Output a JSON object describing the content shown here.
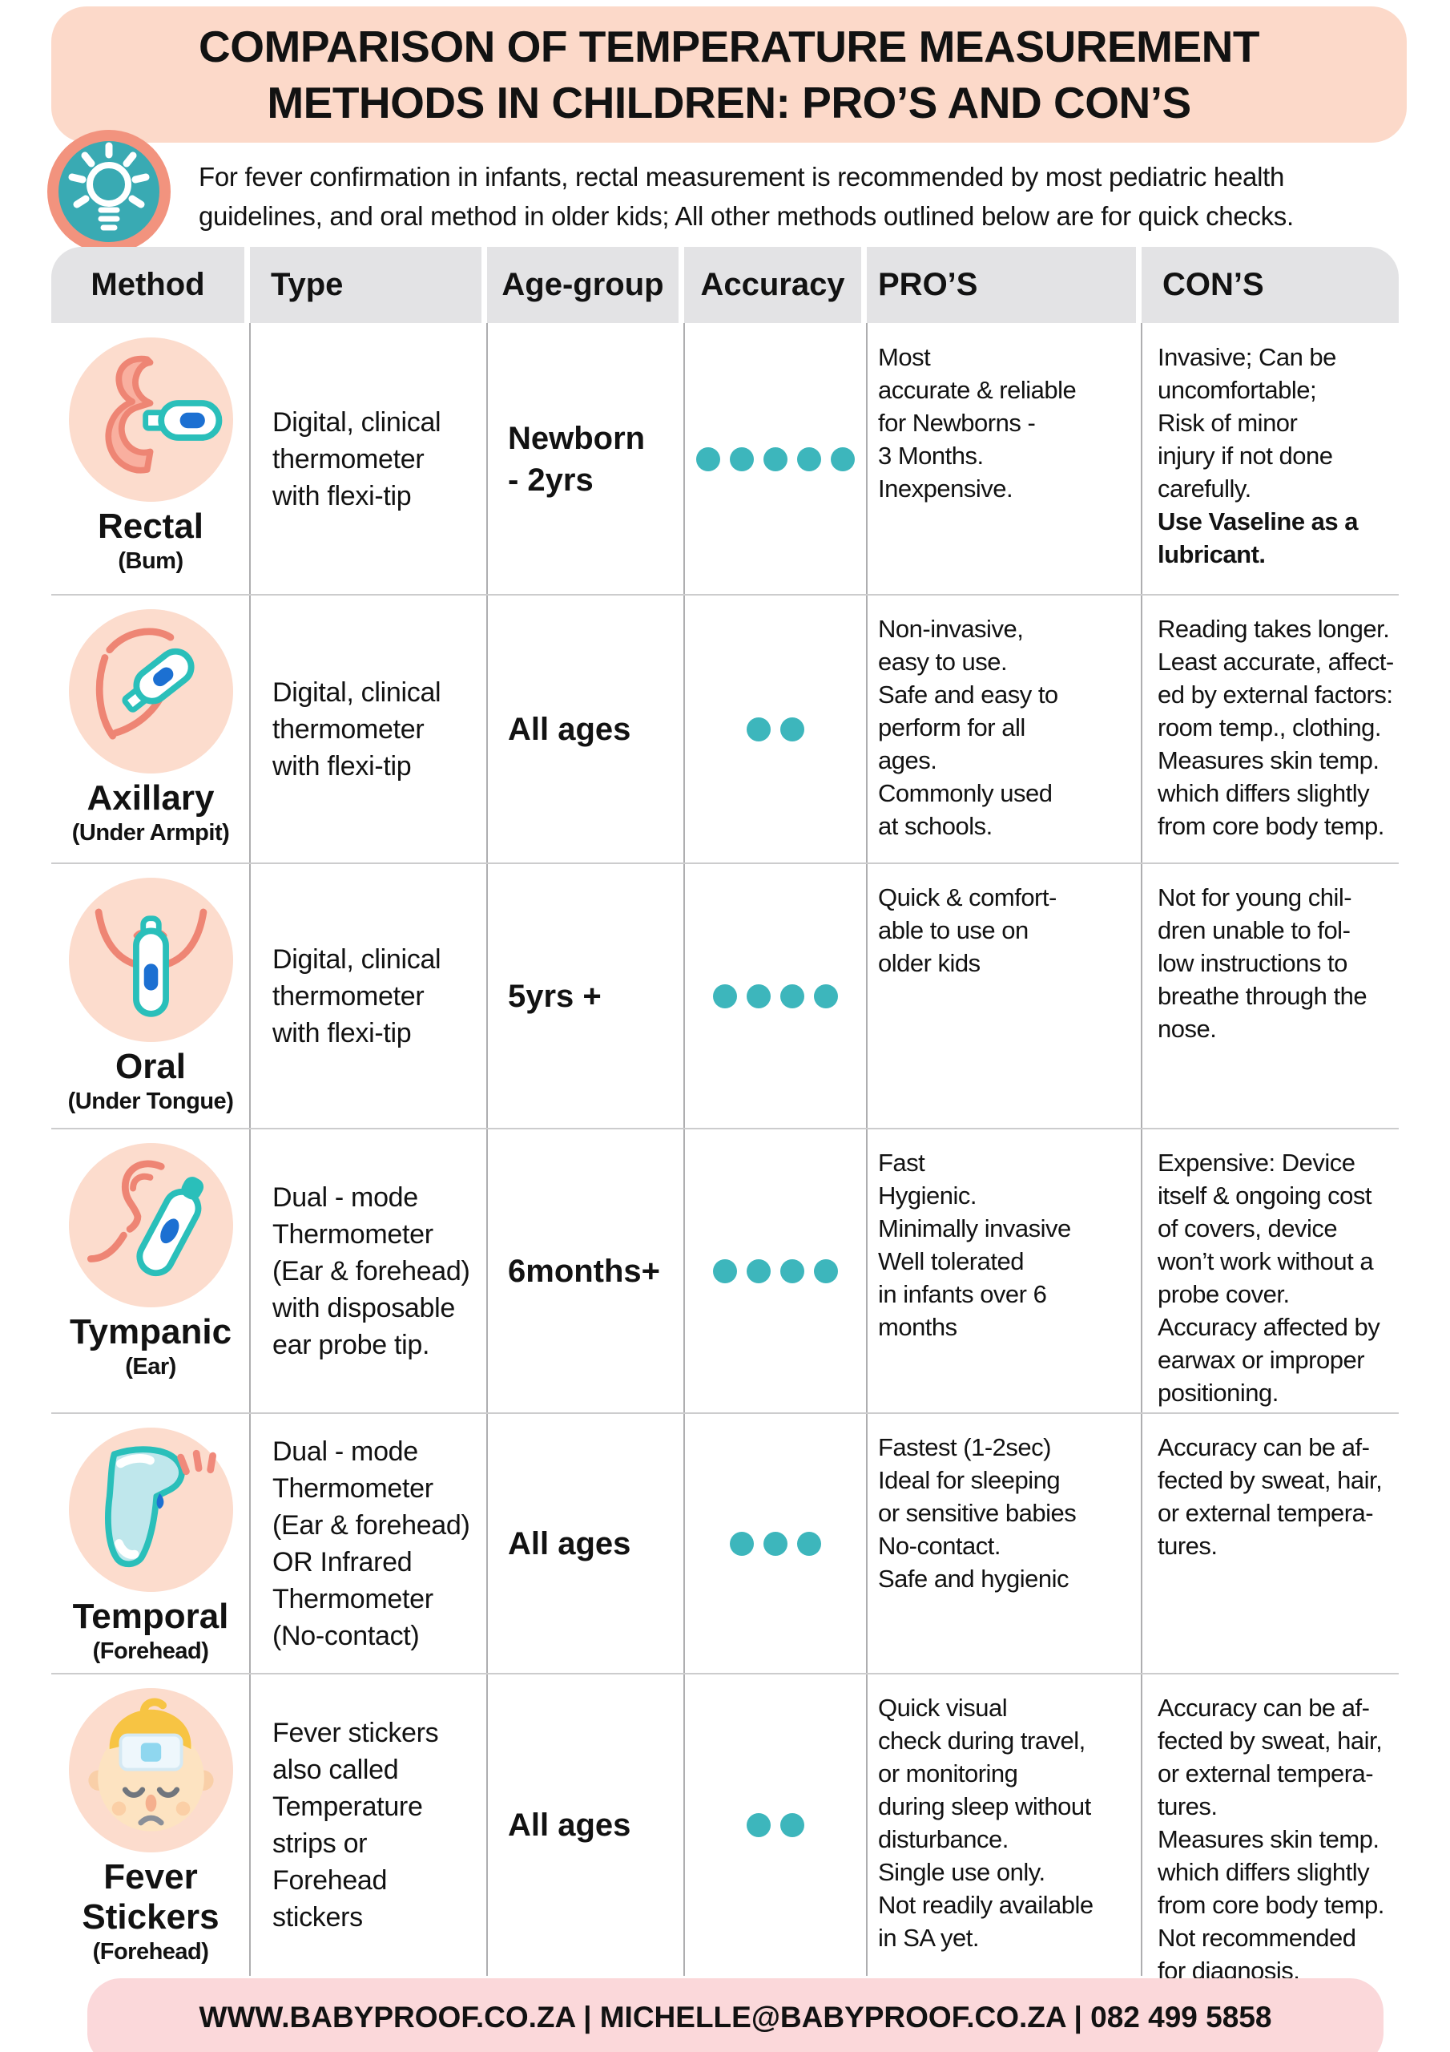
{
  "title": {
    "line1": "COMPARISON OF TEMPERATURE MEASUREMENT",
    "line2": "METHODS IN CHILDREN: PRO’S AND CON’S"
  },
  "intro": {
    "text": "For fever confirmation in infants, rectal measurement is recommended by most pediatric health\nguidelines, and oral method in older kids; All other methods outlined below are for quick checks."
  },
  "table": {
    "headers": [
      "Method",
      "Type",
      "Age-group",
      "Accuracy",
      "PRO’S",
      "CON’S"
    ],
    "rows": [
      {
        "method": "Rectal",
        "method_sub": "(Bum)",
        "type": "Digital, clinical\nthermometer\nwith flexi-tip",
        "age": "Newborn\n- 2yrs",
        "accuracy": 5,
        "pros": "Most\naccurate & reliable\nfor Newborns -\n3 Months.\nInexpensive.",
        "cons": "Invasive; Can be\nuncomfortable;\nRisk of minor\ninjury if not done\ncarefully.",
        "cons_bold": "Use Vaseline as a\nlubricant."
      },
      {
        "method": "Axillary",
        "method_sub": "(Under Armpit)",
        "type": "Digital, clinical\nthermometer\nwith flexi-tip",
        "age": "All ages",
        "accuracy": 2,
        "pros": "Non-invasive,\neasy to use.\nSafe and easy to\nperform for all\nages.\nCommonly used\nat schools.",
        "cons": "Reading takes longer.\nLeast accurate, affect-\ned by external factors:\nroom temp., clothing.\nMeasures skin temp.\nwhich differs slightly\nfrom core body temp.",
        "cons_bold": ""
      },
      {
        "method": "Oral",
        "method_sub": "(Under Tongue)",
        "type": "Digital, clinical\nthermometer\nwith flexi-tip",
        "age": "5yrs +",
        "accuracy": 4,
        "pros": "Quick & comfort-\nable to use on\nolder kids",
        "cons": "Not for young chil-\ndren unable to fol-\nlow instructions to\nbreathe through the\nnose.",
        "cons_bold": ""
      },
      {
        "method": "Tympanic",
        "method_sub": "(Ear)",
        "type": "Dual - mode\nThermometer\n(Ear & forehead)\nwith disposable\near probe tip.",
        "age": "6months+",
        "accuracy": 4,
        "pros": "Fast\nHygienic.\nMinimally invasive\nWell tolerated\nin infants over 6\nmonths",
        "cons": "Expensive: Device\nitself & ongoing cost\nof covers, device\nwon’t work without a\nprobe cover.\nAccuracy affected by\nearwax or improper\npositioning.",
        "cons_bold": ""
      },
      {
        "method": "Temporal",
        "method_sub": "(Forehead)",
        "type": "Dual - mode\nThermometer\n(Ear & forehead)\nOR Infrared\nThermometer\n(No-contact)",
        "age": "All ages",
        "accuracy": 3,
        "pros": "Fastest (1-2sec)\nIdeal for sleeping\nor sensitive babies\nNo-contact.\nSafe and hygienic",
        "cons": "Accuracy can be af-\nfected by sweat, hair,\nor external tempera-\ntures.",
        "cons_bold": ""
      },
      {
        "method": "Fever\nStickers",
        "method_sub": "(Forehead)",
        "type": "Fever stickers\nalso called\nTemperature\nstrips or\nForehead\nstickers",
        "age": "All ages",
        "accuracy": 2,
        "pros": "Quick visual\ncheck during travel,\nor monitoring\nduring sleep without\ndisturbance.\nSingle use only.\nNot readily available\nin SA yet.",
        "cons": "Accuracy can be af-\nfected by sweat, hair,\nor external tempera-\ntures.\nMeasures skin temp.\nwhich differs slightly\nfrom core body temp.\nNot recommended\nfor diagnosis.",
        "cons_bold": ""
      }
    ]
  },
  "footer": {
    "text": "WWW.BABYPROOF.CO.ZA | MICHELLE@BABYPROOF.CO.ZA | 082 499 5858"
  },
  "colors": {
    "title_bg": "#fcd9c9",
    "header_bg": "#e3e3e5",
    "method_circle_bg": "#fcdccd",
    "footer_bg": "#fbd8da",
    "accuracy_dot": "#3db6bc",
    "salmon": "#ee8574",
    "teal": "#2abfba",
    "blue": "#1c70d2",
    "text": "#121212"
  }
}
